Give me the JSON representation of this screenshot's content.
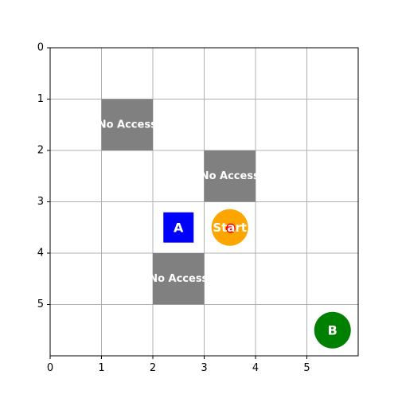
{
  "grid": {
    "columns": 6,
    "rows": 6,
    "x_ticks": [
      "0",
      "1",
      "2",
      "3",
      "4",
      "5"
    ],
    "y_ticks": [
      "0",
      "1",
      "2",
      "3",
      "4",
      "5"
    ],
    "gridlines": true,
    "y_axis_inverted": true
  },
  "blocked_cells": [
    {
      "col": 1,
      "row": 1,
      "label": "No Access"
    },
    {
      "col": 3,
      "row": 2,
      "label": "No Access"
    },
    {
      "col": 2,
      "row": 4,
      "label": "No Access"
    }
  ],
  "markers": {
    "start": {
      "col": 3,
      "row": 3,
      "label": "Start",
      "color": "#ffa500",
      "dot_color": "#ff0000"
    },
    "a": {
      "col": 2,
      "row": 3,
      "label": "A",
      "color": "#0000ff"
    },
    "b": {
      "col": 5,
      "row": 5,
      "label": "B",
      "color": "#008000"
    }
  },
  "colors": {
    "blocked": "#808080",
    "grid": "#b0b0b0",
    "axis": "#000000"
  }
}
